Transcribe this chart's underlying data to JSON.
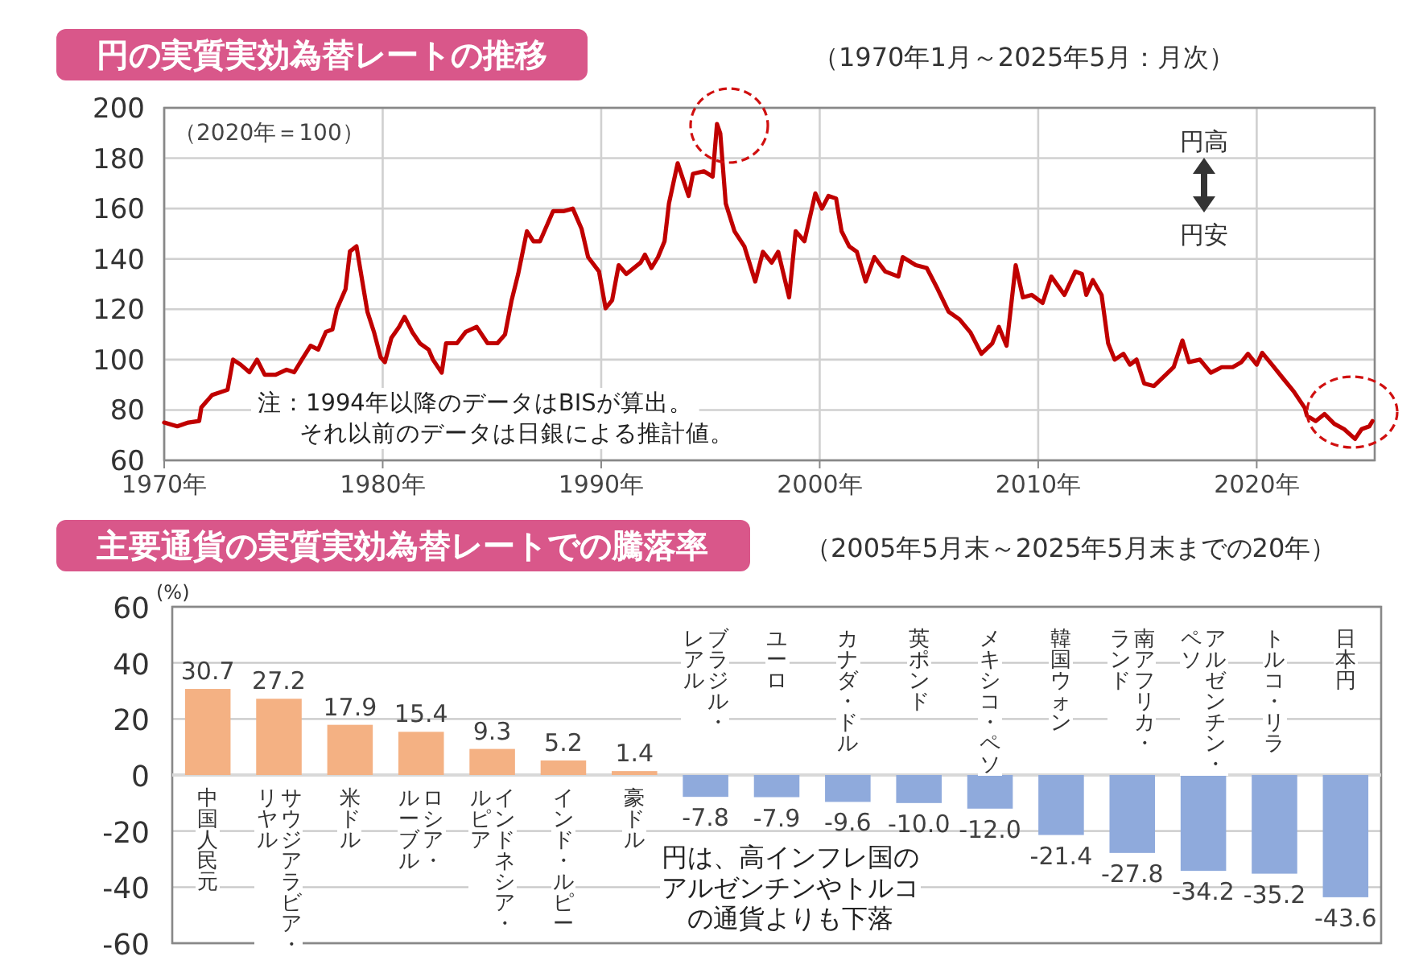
{
  "chart_data": [
    {
      "type": "line",
      "title": "円の実質実効為替レートの推移",
      "subtitle": "（1970年1月～2025年5月：月次）",
      "color": "#c00000",
      "grid": true,
      "x": [
        1970,
        1970.6,
        1971.1,
        1971.6,
        1971.7,
        1972.2,
        1972.9,
        1973.15,
        1973.5,
        1973.9,
        1974.25,
        1974.6,
        1975.1,
        1975.6,
        1975.95,
        1976.3,
        1976.7,
        1977.05,
        1977.4,
        1977.7,
        1977.9,
        1978.3,
        1978.5,
        1978.8,
        1979.05,
        1979.3,
        1979.6,
        1979.9,
        1980.1,
        1980.4,
        1980.75,
        1981.0,
        1981.35,
        1981.7,
        1982.1,
        1982.3,
        1982.7,
        1982.9,
        1983.4,
        1983.8,
        1984.3,
        1984.8,
        1985.25,
        1985.6,
        1985.9,
        1986.2,
        1986.6,
        1986.9,
        1987.2,
        1987.8,
        1988.3,
        1988.7,
        1989.1,
        1989.4,
        1989.9,
        1990.2,
        1990.5,
        1990.8,
        1991.15,
        1991.8,
        1992.0,
        1992.3,
        1992.6,
        1992.9,
        1993.1,
        1993.5,
        1994.0,
        1994.2,
        1994.7,
        1995.1,
        1995.3,
        1995.45,
        1995.7,
        1996.1,
        1996.55,
        1997.05,
        1997.4,
        1997.8,
        1998.1,
        1998.6,
        1998.9,
        1999.3,
        1999.8,
        2000.1,
        2000.4,
        2000.75,
        2001.0,
        2001.35,
        2001.7,
        2002.1,
        2002.5,
        2003.0,
        2003.6,
        2003.8,
        2004.4,
        2004.9,
        2005.4,
        2005.9,
        2006.4,
        2006.9,
        2007.4,
        2007.9,
        2008.2,
        2008.55,
        2008.97,
        2009.3,
        2009.7,
        2010.2,
        2010.6,
        2011.2,
        2011.7,
        2012.0,
        2012.2,
        2012.5,
        2012.9,
        2013.2,
        2013.5,
        2013.9,
        2014.2,
        2014.5,
        2014.85,
        2015.3,
        2015.8,
        2016.2,
        2016.6,
        2016.9,
        2017.4,
        2017.9,
        2018.4,
        2018.9,
        2019.3,
        2019.6,
        2020.0,
        2020.25,
        2020.7,
        2021.2,
        2021.7,
        2022.2,
        2022.3,
        2022.7,
        2023.1,
        2023.55,
        2024.0,
        2024.5,
        2024.8,
        2025.15,
        2025.3
      ],
      "values": [
        75,
        73.5,
        75,
        75.6,
        81,
        86,
        88,
        100,
        98,
        95,
        100,
        94,
        94,
        96,
        95,
        100,
        105.5,
        104,
        111,
        112,
        120,
        128,
        143,
        145,
        132,
        119,
        111,
        101,
        99,
        108.7,
        113,
        117,
        111,
        106.5,
        104,
        100,
        94.8,
        106.5,
        106.5,
        111,
        113,
        106.5,
        106.5,
        110,
        123.6,
        134,
        151,
        147,
        147,
        159,
        159,
        160,
        152,
        140.7,
        135,
        120.4,
        123.6,
        137.5,
        134,
        138.5,
        141.7,
        136.4,
        140.7,
        147,
        162,
        178,
        165,
        173.8,
        174.8,
        172.7,
        193.6,
        189.8,
        162,
        151,
        145,
        131,
        142.8,
        138.5,
        142.8,
        124.7,
        151,
        147,
        166,
        160,
        165,
        164,
        151,
        145,
        142.8,
        131,
        140.7,
        135,
        133,
        140.7,
        137.5,
        136.4,
        128,
        119,
        116,
        110.8,
        102.3,
        106.5,
        113,
        105.5,
        137.5,
        124.7,
        125.7,
        122.5,
        133,
        125.7,
        135,
        134,
        125.7,
        131.6,
        125.7,
        106.5,
        100,
        102.3,
        98,
        100,
        90.5,
        89.5,
        93.7,
        97,
        107.6,
        99,
        100,
        94.8,
        97,
        97,
        99,
        102.3,
        98,
        102.7,
        98,
        92.6,
        87.3,
        80.8,
        77.7,
        75.6,
        78.4,
        74.5,
        72.4,
        68.5,
        72.4,
        73.5,
        75.6
      ],
      "xlim": [
        1970,
        2025.4
      ],
      "xticks": [
        {
          "value": 1970,
          "label": "1970年"
        },
        {
          "value": 1980,
          "label": "1980年"
        },
        {
          "value": 1990,
          "label": "1990年"
        },
        {
          "value": 2000,
          "label": "2000年"
        },
        {
          "value": 2010,
          "label": "2010年"
        },
        {
          "value": 2020,
          "label": "2020年"
        }
      ],
      "ylim": [
        60,
        200
      ],
      "yticks": [
        60,
        80,
        100,
        120,
        140,
        160,
        180,
        200
      ],
      "annotations": [
        "（2020年＝100）",
        "注：1994年以降のデータはBISが算出。",
        "それ以前のデータは日銀による推計値。",
        "円高",
        "円安"
      ]
    },
    {
      "type": "bar",
      "title": "主要通貨の実質実効為替レートでの騰落率",
      "subtitle": "（2005年5月末～2025年5月末までの20年）",
      "ylabel": "(%)",
      "grid": "y",
      "categories": [
        "中国人民元",
        "サウジアラビア・リヤル",
        "米ドル",
        "ロシア・ルーブル",
        "インドネシア・ルピア",
        "インド・ルピー",
        "豪ドル",
        "ブラジル・レアル",
        "ユーロ",
        "カナダ・ドル",
        "英ポンド",
        "メキシコ・ペソ",
        "韓国ウォン",
        "南アフリカ・ランド",
        "アルゼンチン・ペソ",
        "トルコ・リラ",
        "日本円"
      ],
      "values": [
        30.7,
        27.2,
        17.9,
        15.4,
        9.3,
        5.2,
        1.4,
        -7.8,
        -7.9,
        -9.6,
        -10.0,
        -12.0,
        -21.4,
        -27.8,
        -34.2,
        -35.2,
        -43.6
      ],
      "value_labels": [
        "30.7",
        "27.2",
        "17.9",
        "15.4",
        "9.3",
        "5.2",
        "1.4",
        "-7.8",
        "-7.9",
        "-9.6",
        "-10.0",
        "-12.0",
        "-21.4",
        "-27.8",
        "-34.2",
        "-35.2",
        "-43.6"
      ],
      "colors": [
        "#f4b183",
        "#f4b183",
        "#f4b183",
        "#f4b183",
        "#f4b183",
        "#f4b183",
        "#f4b183",
        "#8faadc",
        "#8faadc",
        "#8faadc",
        "#8faadc",
        "#8faadc",
        "#8faadc",
        "#8faadc",
        "#8faadc",
        "#8faadc",
        "#8faadc"
      ],
      "ylim": [
        -60,
        60
      ],
      "yticks": [
        -60,
        -40,
        -20,
        0,
        20,
        40,
        60
      ],
      "annotations": [
        "円は、高インフレ国のアルゼンチンやトルコの通貨よりも下落"
      ]
    }
  ]
}
